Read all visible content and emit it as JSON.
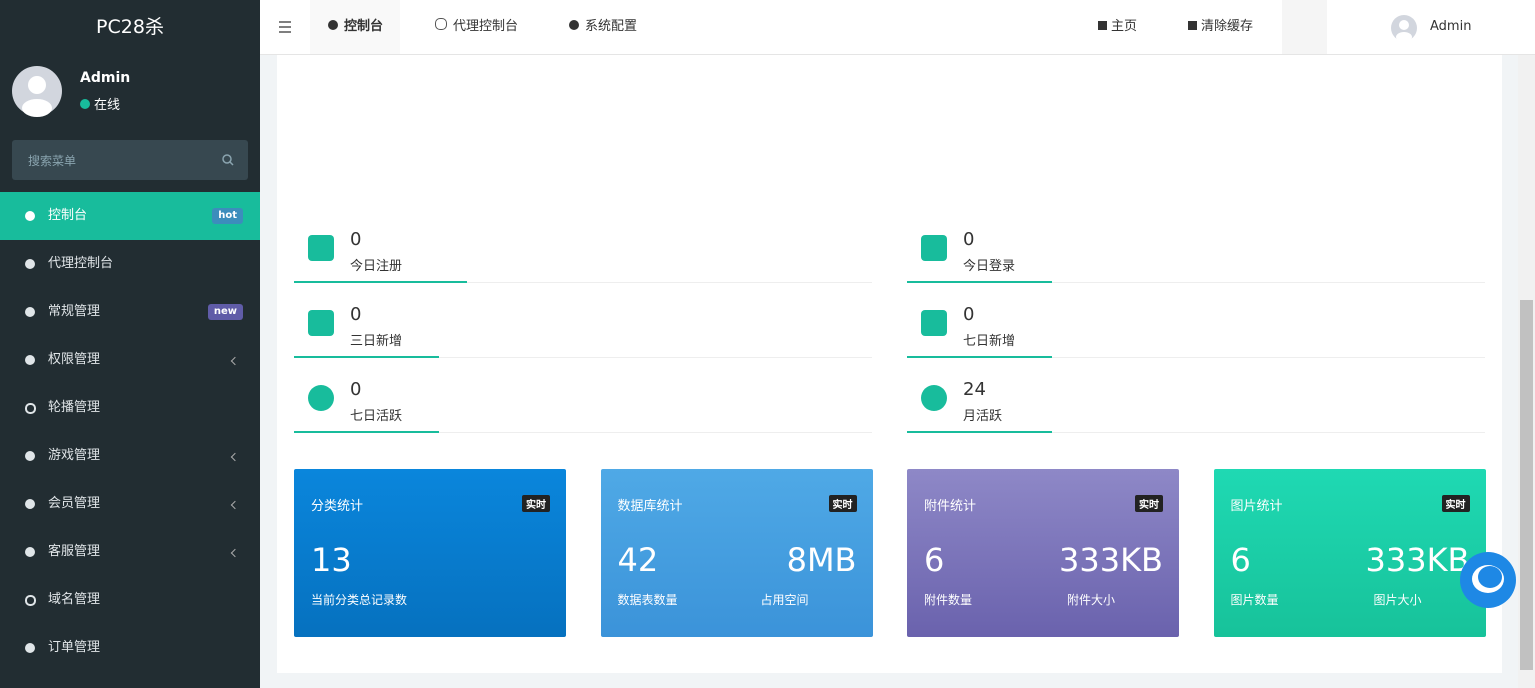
{
  "sidebar": {
    "logo": "PC28杀",
    "user": {
      "name": "Admin",
      "status": "在线"
    },
    "search_placeholder": "搜索菜单",
    "menu": [
      {
        "label": "控制台",
        "badge": "hot"
      },
      {
        "label": "代理控制台"
      },
      {
        "label": "常规管理",
        "badge": "new"
      },
      {
        "label": "权限管理"
      },
      {
        "label": "轮播管理"
      },
      {
        "label": "游戏管理"
      },
      {
        "label": "会员管理"
      },
      {
        "label": "客服管理"
      },
      {
        "label": "域名管理"
      },
      {
        "label": "订单管理"
      }
    ]
  },
  "topbar": {
    "tabs": [
      "控制台",
      "代理控制台",
      "系统配置"
    ],
    "links": [
      "主页",
      "清除缓存"
    ],
    "user": "Admin"
  },
  "stats": [
    {
      "value": 0,
      "label": "今日注册"
    },
    {
      "value": 0,
      "label": "今日登录"
    },
    {
      "value": 0,
      "label": "三日新增"
    },
    {
      "value": 0,
      "label": "七日新增"
    },
    {
      "value": 0,
      "label": "七日活跃"
    },
    {
      "value": 24,
      "label": "月活跃"
    }
  ],
  "cards": [
    {
      "title": "分类统计",
      "tag": "实时",
      "items": [
        {
          "value": "13",
          "label": "当前分类总记录数"
        }
      ]
    },
    {
      "title": "数据库统计",
      "tag": "实时",
      "items": [
        {
          "value": "42",
          "label": "数据表数量"
        },
        {
          "value": "8MB",
          "label": "占用空间"
        }
      ]
    },
    {
      "title": "附件统计",
      "tag": "实时",
      "items": [
        {
          "value": "6",
          "label": "附件数量"
        },
        {
          "value": "333KB",
          "label": "附件大小"
        }
      ]
    },
    {
      "title": "图片统计",
      "tag": "实时",
      "items": [
        {
          "value": "6",
          "label": "图片数量"
        },
        {
          "value": "333KB",
          "label": "图片大小"
        }
      ]
    }
  ]
}
